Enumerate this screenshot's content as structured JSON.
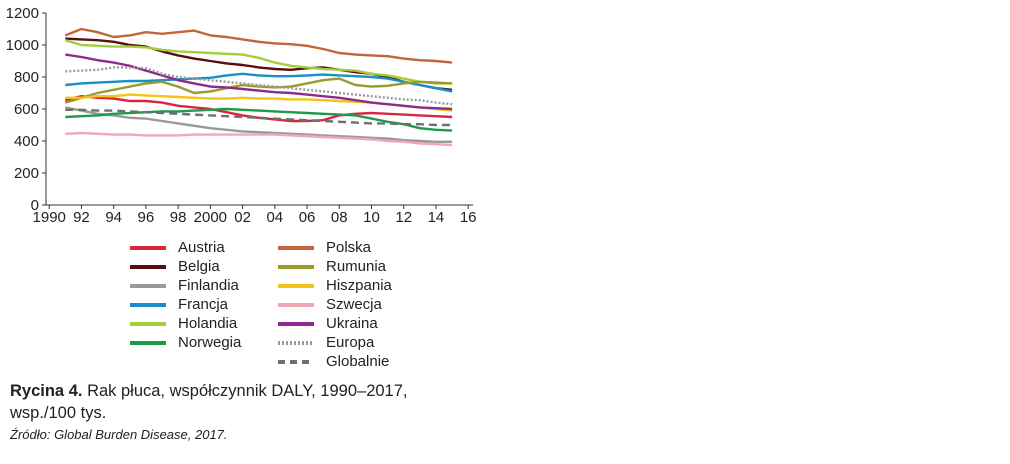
{
  "chart_data": {
    "type": "line",
    "title": "",
    "xlabel": "",
    "ylabel": "",
    "xlim": [
      1989.8,
      2016.3
    ],
    "ylim": [
      0,
      1200
    ],
    "yticks": [
      0,
      200,
      400,
      600,
      800,
      1000,
      1200
    ],
    "xticks": [
      {
        "value": 1990,
        "label": "1990"
      },
      {
        "value": 1992,
        "label": "92"
      },
      {
        "value": 1994,
        "label": "94"
      },
      {
        "value": 1996,
        "label": "96"
      },
      {
        "value": 1998,
        "label": "98"
      },
      {
        "value": 2000,
        "label": "2000"
      },
      {
        "value": 2002,
        "label": "02"
      },
      {
        "value": 2004,
        "label": "04"
      },
      {
        "value": 2006,
        "label": "06"
      },
      {
        "value": 2008,
        "label": "08"
      },
      {
        "value": 2010,
        "label": "10"
      },
      {
        "value": 2012,
        "label": "12"
      },
      {
        "value": 2014,
        "label": "14"
      },
      {
        "value": 2016,
        "label": "16"
      }
    ],
    "x": [
      1991,
      1992,
      1993,
      1994,
      1995,
      1996,
      1997,
      1998,
      1999,
      2000,
      2001,
      2002,
      2003,
      2004,
      2005,
      2006,
      2007,
      2008,
      2009,
      2010,
      2011,
      2012,
      2013,
      2014,
      2015
    ],
    "series": [
      {
        "name": "Austria",
        "color": "#d7263d",
        "dash": "solid",
        "values": [
          655,
          680,
          670,
          665,
          650,
          650,
          640,
          620,
          610,
          600,
          580,
          560,
          545,
          535,
          525,
          525,
          530,
          560,
          570,
          575,
          570,
          565,
          560,
          555,
          550
        ]
      },
      {
        "name": "Belgia",
        "color": "#5a0f0f",
        "dash": "solid",
        "values": [
          1040,
          1035,
          1030,
          1020,
          1000,
          990,
          960,
          935,
          915,
          900,
          885,
          875,
          860,
          850,
          845,
          855,
          860,
          845,
          830,
          820,
          800,
          770,
          750,
          730,
          720
        ]
      },
      {
        "name": "Finlandia",
        "color": "#999999",
        "dash": "solid",
        "values": [
          610,
          590,
          570,
          560,
          545,
          540,
          525,
          510,
          495,
          480,
          470,
          460,
          455,
          450,
          445,
          440,
          435,
          430,
          425,
          420,
          415,
          405,
          400,
          395,
          395
        ]
      },
      {
        "name": "Francja",
        "color": "#1a8fc7",
        "dash": "solid",
        "values": [
          750,
          760,
          765,
          770,
          775,
          775,
          780,
          785,
          790,
          795,
          810,
          820,
          810,
          805,
          805,
          810,
          815,
          810,
          805,
          800,
          790,
          770,
          750,
          730,
          710
        ]
      },
      {
        "name": "Holandia",
        "color": "#a5cd3a",
        "dash": "solid",
        "values": [
          1030,
          1000,
          995,
          990,
          990,
          985,
          970,
          960,
          955,
          950,
          945,
          940,
          920,
          890,
          870,
          860,
          850,
          845,
          840,
          820,
          810,
          790,
          770,
          760,
          760
        ]
      },
      {
        "name": "Norwegia",
        "color": "#1e9a4a",
        "dash": "solid",
        "values": [
          550,
          555,
          560,
          570,
          575,
          580,
          585,
          585,
          590,
          595,
          600,
          595,
          590,
          585,
          580,
          575,
          570,
          565,
          560,
          540,
          520,
          505,
          480,
          470,
          465
        ]
      },
      {
        "name": "Polska",
        "color": "#c0663a",
        "dash": "solid",
        "values": [
          1060,
          1100,
          1080,
          1050,
          1060,
          1080,
          1070,
          1080,
          1090,
          1060,
          1050,
          1035,
          1020,
          1010,
          1005,
          995,
          975,
          950,
          940,
          935,
          930,
          915,
          905,
          900,
          890
        ]
      },
      {
        "name": "Rumunia",
        "color": "#9a9a2e",
        "dash": "solid",
        "values": [
          640,
          670,
          700,
          720,
          740,
          760,
          770,
          740,
          700,
          710,
          730,
          750,
          740,
          735,
          740,
          760,
          780,
          790,
          750,
          740,
          745,
          760,
          770,
          765,
          760
        ]
      },
      {
        "name": "Hiszpania",
        "color": "#f2c318",
        "dash": "solid",
        "values": [
          670,
          670,
          680,
          680,
          690,
          685,
          680,
          675,
          670,
          665,
          665,
          670,
          665,
          665,
          660,
          660,
          655,
          650,
          645,
          640,
          630,
          620,
          610,
          600,
          590
        ]
      },
      {
        "name": "Szwecja",
        "color": "#f2a7b5",
        "dash": "solid",
        "values": [
          445,
          450,
          445,
          440,
          440,
          435,
          435,
          435,
          440,
          440,
          440,
          440,
          440,
          440,
          435,
          430,
          425,
          420,
          415,
          410,
          400,
          395,
          385,
          380,
          375
        ]
      },
      {
        "name": "Ukraina",
        "color": "#8e2a8e",
        "dash": "solid",
        "values": [
          940,
          925,
          905,
          890,
          870,
          840,
          810,
          780,
          760,
          740,
          735,
          725,
          715,
          705,
          700,
          690,
          680,
          670,
          655,
          640,
          630,
          620,
          610,
          605,
          600
        ]
      },
      {
        "name": "Europa",
        "color": "#9a9a9a",
        "dash": "dotted",
        "values": [
          835,
          840,
          845,
          860,
          860,
          855,
          820,
          800,
          790,
          780,
          770,
          760,
          750,
          740,
          730,
          720,
          710,
          700,
          690,
          680,
          670,
          660,
          655,
          640,
          630
        ]
      },
      {
        "name": "Globalnie",
        "color": "#6f6f6f",
        "dash": "dashed",
        "values": [
          595,
          595,
          590,
          590,
          585,
          580,
          575,
          570,
          565,
          560,
          555,
          550,
          545,
          540,
          535,
          530,
          525,
          520,
          515,
          510,
          510,
          505,
          505,
          500,
          500
        ]
      }
    ]
  },
  "caption": {
    "label": "Rycina 4.",
    "text": "Rak płuca, współczynnik DALY, 1990–2017, wsp./100 tys.",
    "source": "Źródło: Global Burden Disease, 2017."
  }
}
